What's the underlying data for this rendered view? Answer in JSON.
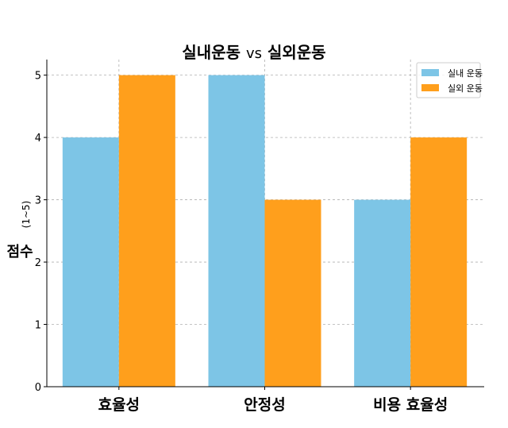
{
  "chart_data": {
    "type": "bar",
    "title": {
      "part1": "실내운동",
      "vs": "vs",
      "part2": "실외운동"
    },
    "ylabel": {
      "main": "점수",
      "sub": "(1~5)"
    },
    "xlabel": "",
    "categories": [
      "효율성",
      "안정성",
      "비용 효율성"
    ],
    "series": [
      {
        "name": "실내 운동",
        "color": "#7dc5e6",
        "values": [
          4,
          5,
          3
        ]
      },
      {
        "name": "실외 운동",
        "color": "#ff9f1c",
        "values": [
          5,
          3,
          4
        ]
      }
    ],
    "ylim": [
      0,
      5.25
    ],
    "yticks": [
      "0",
      "1",
      "2",
      "3",
      "4",
      "5"
    ],
    "grid": true,
    "legend_position": "top-right"
  }
}
